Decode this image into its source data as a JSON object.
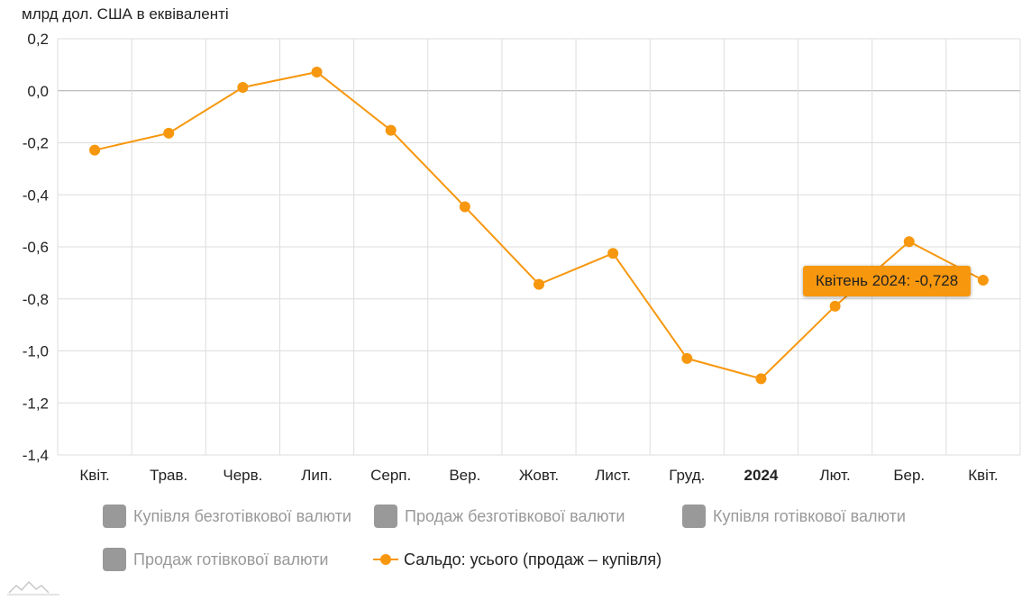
{
  "chart": {
    "unit_label": "млрд дол. США в еквіваленті",
    "tooltip": "Квітень 2024: -0,728",
    "colors": {
      "series": "#f7970e",
      "legend_inactive": "#999999",
      "grid": "#dddddd",
      "zero_line": "#aaaaaa"
    }
  },
  "legend": {
    "items": [
      {
        "label": "Купівля безготівкової валюти",
        "active": false
      },
      {
        "label": "Продаж безготівкової валюти",
        "active": false
      },
      {
        "label": "Купівля готівкової валюти",
        "active": false
      },
      {
        "label": "Продаж готівкової валюти",
        "active": false
      },
      {
        "label": "Сальдо: усього (продаж – купівля)",
        "active": true
      }
    ]
  },
  "chart_data": {
    "type": "line",
    "categories": [
      "Квіт.",
      "Трав.",
      "Черв.",
      "Лип.",
      "Серп.",
      "Вер.",
      "Жовт.",
      "Лист.",
      "Груд.",
      "2024",
      "Лют.",
      "Бер.",
      "Квіт."
    ],
    "bold_categories": [
      "2024"
    ],
    "series": [
      {
        "name": "Сальдо: усього (продаж – купівля)",
        "values": [
          -0.228,
          -0.163,
          0.013,
          0.072,
          -0.152,
          -0.446,
          -0.744,
          -0.625,
          -1.029,
          -1.107,
          -0.828,
          -0.58,
          -0.728
        ]
      }
    ],
    "ylabel": "млрд дол. США в еквіваленті",
    "ylim": [
      -1.4,
      0.2
    ],
    "yticks": [
      "0,2",
      "0,0",
      "-0,2",
      "-0,4",
      "-0,6",
      "-0,8",
      "-1,0",
      "-1,2",
      "-1,4"
    ],
    "grid": true,
    "legend_position": "bottom"
  }
}
